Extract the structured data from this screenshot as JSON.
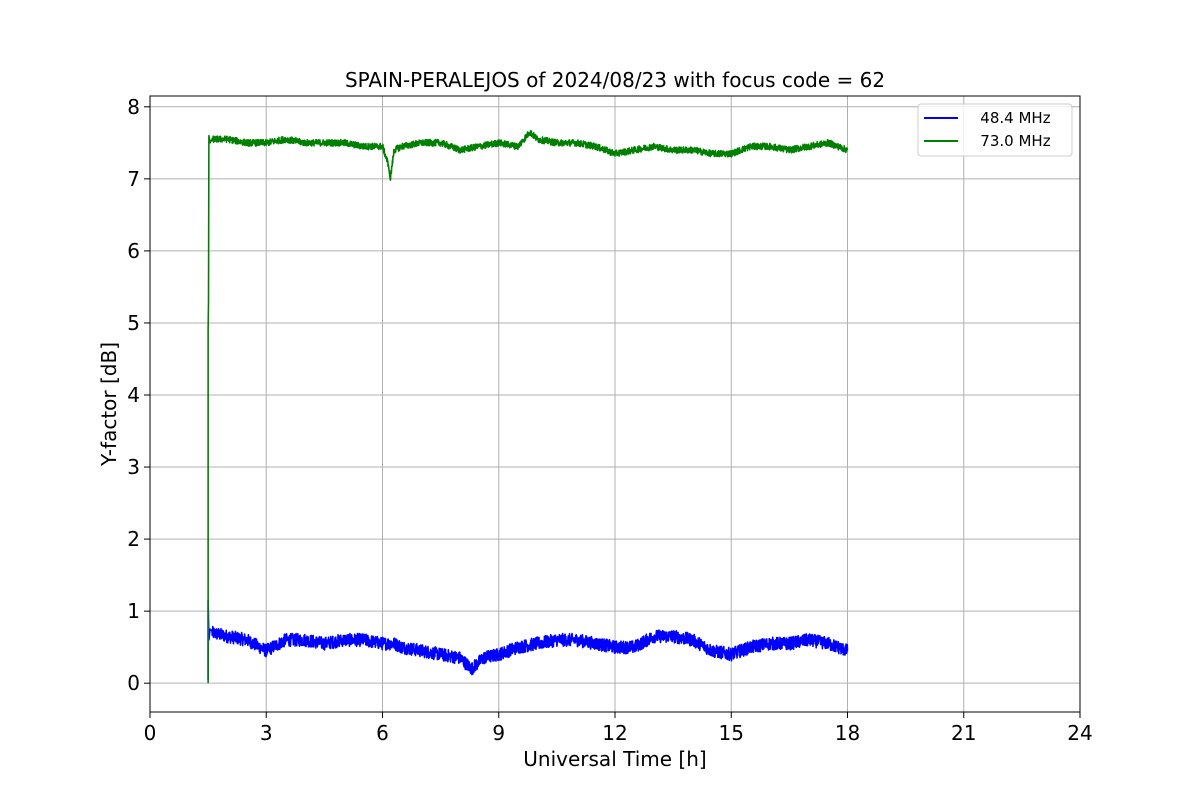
{
  "chart_data": {
    "type": "line",
    "title": "SPAIN-PERALEJOS of 2024/08/23 with focus code = 62",
    "xlabel": "Universal Time [h]",
    "ylabel": "Y-factor [dB]",
    "xlim": [
      0,
      24
    ],
    "ylim": [
      -0.4,
      8.15
    ],
    "xticks": [
      0,
      3,
      6,
      9,
      12,
      15,
      18,
      21,
      24
    ],
    "xtick_labels": [
      "0",
      "3",
      "6",
      "9",
      "12",
      "15",
      "18",
      "21",
      "24"
    ],
    "yticks": [
      0,
      1,
      2,
      3,
      4,
      5,
      6,
      7,
      8
    ],
    "ytick_labels": [
      "0",
      "1",
      "2",
      "3",
      "4",
      "5",
      "6",
      "7",
      "8"
    ],
    "grid": true,
    "legend_position": "upper right",
    "series": [
      {
        "name": "   48.4 MHz",
        "color": "#0000ff",
        "noise_amplitude": 0.09,
        "x": [
          1.5,
          1.5,
          1.52,
          1.55,
          1.6,
          2.0,
          2.5,
          3.0,
          3.5,
          4.0,
          4.5,
          5.0,
          5.5,
          6.0,
          6.3,
          6.5,
          7.0,
          7.5,
          8.0,
          8.3,
          8.6,
          9.0,
          9.5,
          10.0,
          10.5,
          11.0,
          11.5,
          12.0,
          12.5,
          13.0,
          13.5,
          14.0,
          14.5,
          15.0,
          15.5,
          16.0,
          16.5,
          17.0,
          17.5,
          18.0
        ],
        "y": [
          0.05,
          1.15,
          0.6,
          0.75,
          0.7,
          0.65,
          0.6,
          0.45,
          0.6,
          0.6,
          0.55,
          0.6,
          0.6,
          0.55,
          0.55,
          0.5,
          0.45,
          0.4,
          0.35,
          0.2,
          0.35,
          0.4,
          0.5,
          0.55,
          0.6,
          0.6,
          0.55,
          0.5,
          0.5,
          0.65,
          0.65,
          0.6,
          0.45,
          0.4,
          0.5,
          0.55,
          0.55,
          0.6,
          0.55,
          0.45
        ]
      },
      {
        "name": "   73.0 MHz",
        "color": "#008000",
        "noise_amplitude": 0.045,
        "x": [
          1.5,
          1.5,
          1.51,
          1.52,
          1.55,
          1.6,
          2.0,
          2.5,
          3.0,
          3.5,
          4.0,
          4.5,
          5.0,
          5.5,
          6.0,
          6.15,
          6.2,
          6.3,
          6.5,
          7.0,
          7.5,
          8.0,
          8.5,
          9.0,
          9.5,
          9.8,
          10.0,
          10.5,
          11.0,
          11.5,
          12.0,
          12.5,
          13.0,
          13.5,
          14.0,
          14.5,
          15.0,
          15.5,
          16.0,
          16.5,
          17.0,
          17.5,
          18.0
        ],
        "y": [
          0.0,
          4.9,
          5.3,
          7.6,
          7.5,
          7.55,
          7.55,
          7.5,
          7.5,
          7.55,
          7.5,
          7.5,
          7.5,
          7.45,
          7.45,
          7.2,
          7.0,
          7.4,
          7.45,
          7.5,
          7.5,
          7.4,
          7.45,
          7.5,
          7.45,
          7.65,
          7.55,
          7.5,
          7.5,
          7.45,
          7.35,
          7.4,
          7.45,
          7.4,
          7.4,
          7.35,
          7.35,
          7.45,
          7.45,
          7.4,
          7.45,
          7.5,
          7.4
        ]
      }
    ]
  }
}
